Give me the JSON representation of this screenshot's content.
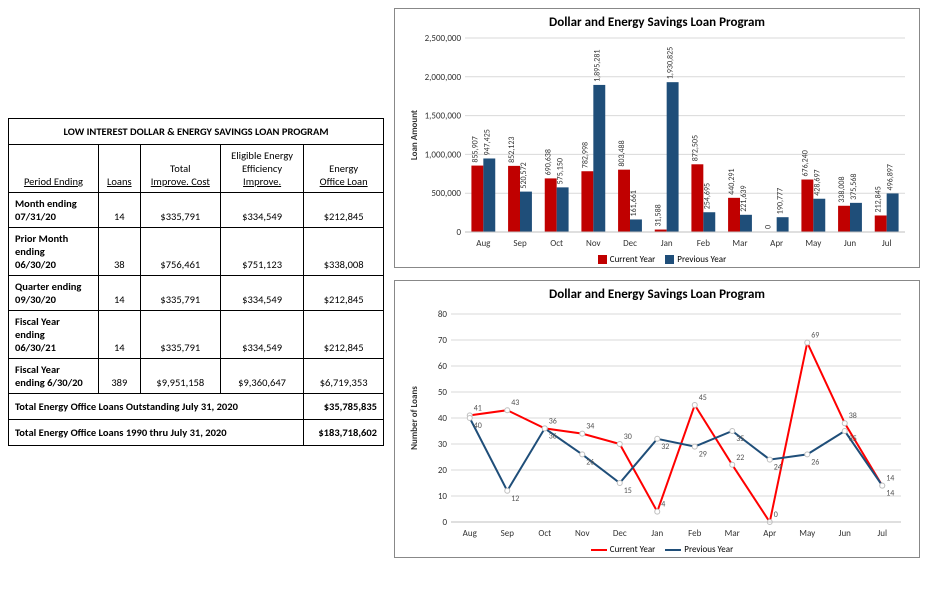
{
  "table": {
    "title": "LOW INTEREST DOLLAR & ENERGY SAVINGS LOAN PROGRAM",
    "columns": [
      {
        "label_lines": [
          "Period Ending"
        ],
        "underline_last": true
      },
      {
        "label_lines": [
          "Loans"
        ],
        "underline_last": true
      },
      {
        "label_lines": [
          "Total",
          "Improve. Cost"
        ],
        "underline_last": true
      },
      {
        "label_lines": [
          "Eligible Energy",
          "Efficiency",
          "Improve."
        ],
        "underline_last": true
      },
      {
        "label_lines": [
          "Energy",
          "Office Loan"
        ],
        "underline_last": true
      }
    ],
    "rows": [
      {
        "head_lines": [
          "Month ending",
          "07/31/20"
        ],
        "cells": [
          "14",
          "$335,791",
          "$334,549",
          "$212,845"
        ]
      },
      {
        "head_lines": [
          "Prior Month",
          "ending",
          "06/30/20"
        ],
        "cells": [
          "38",
          "$756,461",
          "$751,123",
          "$338,008"
        ]
      },
      {
        "head_lines": [
          "Quarter ending",
          "09/30/20"
        ],
        "cells": [
          "14",
          "$335,791",
          "$334,549",
          "$212,845"
        ]
      },
      {
        "head_lines": [
          "Fiscal Year",
          "ending",
          "06/30/21"
        ],
        "cells": [
          "14",
          "$335,791",
          "$334,549",
          "$212,845"
        ]
      },
      {
        "head_lines": [
          "Fiscal Year",
          "ending 6/30/20"
        ],
        "cells": [
          "389",
          "$9,951,158",
          "$9,360,647",
          "$6,719,353"
        ]
      }
    ],
    "footers": [
      {
        "label": "Total Energy Office Loans Outstanding July 31, 2020",
        "value": "$35,785,835"
      },
      {
        "label": "Total Energy Office Loans 1990 thru July 31, 2020",
        "value": "$183,718,602"
      }
    ]
  },
  "bar_chart": {
    "title": "Dollar and Energy Savings Loan Program",
    "ylabel": "Loan Amount",
    "categories": [
      "Aug",
      "Sep",
      "Oct",
      "Nov",
      "Dec",
      "Jan",
      "Feb",
      "Mar",
      "Apr",
      "May",
      "Jun",
      "Jul"
    ],
    "series": [
      {
        "name": "Current Year",
        "color": "#c00000",
        "values": [
          855907,
          852123,
          690638,
          782998,
          803488,
          31588,
          872505,
          440291,
          0,
          676240,
          338008,
          212845
        ],
        "labels": [
          "855,907",
          "852,123",
          "690,638",
          "782,998",
          "803,488",
          "31,588",
          "872,505",
          "440,291",
          "0",
          "676,240",
          "338,008",
          "212,845"
        ]
      },
      {
        "name": "Previous Year",
        "color": "#1f4e79",
        "values": [
          947425,
          520572,
          575150,
          1895281,
          161661,
          1930825,
          254695,
          221639,
          190777,
          428697,
          375568,
          496897
        ],
        "labels": [
          "947,425",
          "520,572",
          "575,150",
          "1,895,281",
          "161,661",
          "1,930,825",
          "254,695",
          "221,639",
          "190,777",
          "428,697",
          "375,568",
          "496,897"
        ]
      }
    ],
    "ymax": 2500000,
    "ytick_step": 500000,
    "ytick_labels": [
      "0",
      "500,000",
      "1,000,000",
      "1,500,000",
      "2,000,000",
      "2,500,000"
    ],
    "grid_color": "#d9d9d9",
    "background_color": "#ffffff",
    "label_fontsize": 8,
    "tick_fontsize": 9,
    "bar_group_width": 0.65
  },
  "line_chart": {
    "title": "Dollar and Energy Savings Loan Program",
    "ylabel": "Number of Loans",
    "categories": [
      "Aug",
      "Sep",
      "Oct",
      "Nov",
      "Dec",
      "Jan",
      "Feb",
      "Mar",
      "Apr",
      "May",
      "Jun",
      "Jul"
    ],
    "series": [
      {
        "name": "Current Year",
        "color": "#ff0000",
        "line_width": 2,
        "values": [
          41,
          43,
          36,
          34,
          30,
          4,
          45,
          22,
          0,
          69,
          38,
          14
        ]
      },
      {
        "name": "Previous Year",
        "color": "#1f4e79",
        "line_width": 2,
        "values": [
          40,
          12,
          36,
          26,
          15,
          32,
          29,
          35,
          24,
          26,
          35,
          14
        ]
      }
    ],
    "ymax": 80,
    "ytick_step": 10,
    "ytick_labels": [
      "0",
      "10",
      "20",
      "30",
      "40",
      "50",
      "60",
      "70",
      "80"
    ],
    "grid_color": "#d9d9d9",
    "background_color": "#ffffff",
    "marker": {
      "type": "circle",
      "radius": 2.5,
      "fill": "#ffffff",
      "stroke": "#bfbfbf"
    },
    "label_fontsize": 8,
    "tick_fontsize": 9
  }
}
